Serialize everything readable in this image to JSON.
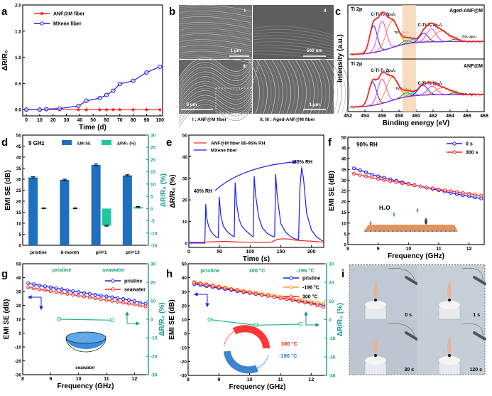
{
  "panel_letters": {
    "a": "a",
    "b": "b",
    "c": "c",
    "d": "d",
    "e": "e",
    "f": "f",
    "g": "g",
    "h": "h",
    "i": "i"
  },
  "colors": {
    "blue": "#1a1aff",
    "red": "#ff2020",
    "orange": "#ff9a1a",
    "teal": "#1a9a8a",
    "bar_blue": "#1f6fbf",
    "bar_green": "#20c8a0",
    "band": "#f6d3b0"
  },
  "panel_b": {
    "roman": [
      "I",
      "II",
      "III"
    ],
    "scale_bars": [
      "1 µm",
      "500 nm",
      "5 µm",
      "1 µm"
    ],
    "caption_left": "I : ANF@M fiber",
    "caption_right": "II, III : Aged-ANF@M fiber"
  },
  "panel_c_labels": {
    "top_title": "Ti 2p",
    "top_sample": "Aged-ANF@M",
    "bottom_title": "Ti 2p",
    "bottom_sample": "ANF@M",
    "c_ti_32": "C-Ti-Tₓ 2p₃/₂",
    "tio2_32": "TiO₂ 2p₃/₂",
    "c_ti_12": "C-Ti-Tₓ 2p₁/₂",
    "tio2_12": "TiO₂ 2p₁/₂"
  },
  "panel_d_labels": {
    "freq": "9 GHz",
    "legend_emi": "EMI SE",
    "legend_dr": "ΔR/R₀ (%)"
  },
  "panel_e_labels": {
    "rh_low": "40% RH",
    "rh_high": "85% RH"
  },
  "panel_f_labels": {
    "condition": "90% RH",
    "h2o": "H₂O"
  },
  "panel_g_labels": {
    "pristine": "pristine",
    "seawater": "seawater",
    "inset": "seawater"
  },
  "panel_h_labels": {
    "pristine": "pristine",
    "hot": "300 °C",
    "cold": "-196 °C",
    "ring_hot": "300 °C",
    "ring_cold": "-196 °C"
  },
  "panel_i": {
    "times": [
      "0 s",
      "1 s",
      "30 s",
      "120 s"
    ]
  },
  "chart_data": [
    {
      "panel": "a",
      "type": "line",
      "xlabel": "Time (d)",
      "ylabel": "ΔR/R₀",
      "xlim": [
        -2.7,
        102
      ],
      "ylim": [
        -0.12,
        2.0
      ],
      "xticks": [
        0,
        10,
        20,
        30,
        40,
        50,
        60,
        70,
        80,
        90,
        100
      ],
      "yticks": [
        0.0,
        0.5,
        1.0,
        1.5,
        2.0
      ],
      "ytick_labels": [
        "0.0",
        "0.5",
        "1.0",
        "1.5",
        "2.0"
      ],
      "legend": "top-left",
      "series": [
        {
          "name": "ANF@M fiber",
          "color": "#ff2020",
          "marker": "star",
          "x": [
            0,
            10,
            15,
            25,
            39,
            45,
            55,
            60,
            65,
            70,
            80,
            90,
            100
          ],
          "y": [
            0,
            0,
            0,
            0,
            0,
            0,
            0,
            0,
            0,
            0,
            0,
            0,
            0
          ]
        },
        {
          "name": "MXene fiber",
          "color": "#1a1aff",
          "marker": "circle",
          "x": [
            0,
            10,
            15,
            25,
            39,
            45,
            55,
            60,
            65,
            70,
            80,
            90,
            100
          ],
          "y": [
            0,
            0,
            0.01,
            0.02,
            0.07,
            0.17,
            0.22,
            0.28,
            0.36,
            0.49,
            0.55,
            0.71,
            0.82
          ]
        }
      ]
    },
    {
      "panel": "c",
      "type": "line",
      "xlabel": "Binding energy (eV)",
      "ylabel": "Intensity (a.u.)",
      "xlim": [
        452,
        468
      ],
      "xticks": [
        452,
        454,
        456,
        458,
        460,
        462,
        464,
        466,
        468
      ],
      "highlight_band": [
        458.4,
        460.0
      ],
      "component_colors": [
        "#1a1aff",
        "#ff30ff",
        "#ff8c1a",
        "#1a9a1a",
        "#20d0d0",
        "#1a1aff",
        "#ff30ff",
        "#ff8c1a",
        "#1a9a1a"
      ],
      "envelope_color": "#ff1a1a",
      "background_color": "#8a2be2",
      "spectra": [
        {
          "sample": "Aged-ANF@M",
          "peaks": [
            [
              455.0,
              0.45,
              0.45
            ],
            [
              456.0,
              0.5,
              0.5
            ],
            [
              457.2,
              0.45,
              0.7
            ],
            [
              458.8,
              0.06,
              0.45
            ],
            [
              459.5,
              0.06,
              0.45
            ],
            [
              460.9,
              0.15,
              0.5
            ],
            [
              461.8,
              0.22,
              0.55
            ],
            [
              463.0,
              0.18,
              0.8
            ],
            [
              464.6,
              0.04,
              0.5
            ]
          ]
        },
        {
          "sample": "ANF@M",
          "peaks": [
            [
              454.9,
              0.4,
              0.45
            ],
            [
              456.0,
              0.42,
              0.5
            ],
            [
              457.2,
              0.4,
              0.7
            ],
            [
              458.8,
              0.07,
              0.45
            ],
            [
              459.5,
              0.05,
              0.45
            ],
            [
              460.8,
              0.17,
              0.55
            ],
            [
              461.9,
              0.15,
              0.55
            ],
            [
              463.1,
              0.12,
              0.8
            ],
            [
              464.6,
              0.03,
              0.5
            ]
          ]
        }
      ]
    },
    {
      "panel": "d",
      "type": "bar",
      "ylabel": "EMI SE (dB)",
      "ylabel2": "ΔR/R₀ (%)",
      "categories": [
        "pristine",
        "8-month",
        "pH=1",
        "pH=13"
      ],
      "ylim": [
        0,
        50
      ],
      "yticks": [
        0,
        5,
        10,
        15,
        20,
        25,
        30,
        35,
        40,
        45,
        50
      ],
      "ylim2": [
        -15,
        30
      ],
      "yticks2": [
        -15,
        -10,
        -5,
        0,
        5,
        10,
        15,
        20,
        25,
        30
      ],
      "series": [
        {
          "name": "EMI SE",
          "axis": "left",
          "values": [
            30.8,
            29.7,
            36.5,
            31.7
          ],
          "errors": [
            0.3,
            0.3,
            0.4,
            0.3
          ]
        },
        {
          "name": "ΔR/R₀ (%)",
          "axis": "right",
          "values": [
            0.1,
            0.1,
            -7.0,
            0.6
          ],
          "errors": [
            0.2,
            0.2,
            0.2,
            0.2
          ]
        }
      ],
      "legend": "top"
    },
    {
      "panel": "e",
      "type": "line",
      "xlabel": "Time (s)",
      "ylabel": "ΔR/R₀ (%)",
      "xlim": [
        0,
        220
      ],
      "ylim": [
        -2,
        50
      ],
      "xticks": [
        0,
        50,
        100,
        150,
        200
      ],
      "yticks": [
        0,
        10,
        20,
        30,
        40,
        50
      ],
      "legend": "top-left",
      "series": [
        {
          "name": "ANF@M fiber 85-95% RH",
          "color": "#ff2020",
          "x": [
            0,
            20,
            40,
            60,
            80,
            100,
            120,
            135,
            145,
            155,
            165,
            175,
            190,
            205,
            220
          ],
          "y": [
            0.3,
            0.4,
            0.6,
            0.8,
            0.5,
            0.4,
            0.3,
            0.5,
            1.8,
            2.0,
            1.8,
            1.3,
            1.0,
            0.8,
            0.4
          ]
        },
        {
          "name": "MXene fiber",
          "color": "#1a1aff",
          "x": [
            0,
            26,
            27.5,
            29,
            32,
            36,
            40,
            44,
            47,
            48,
            49.5,
            52,
            56,
            62,
            68,
            73,
            74,
            75.5,
            78,
            82,
            86,
            92,
            98,
            104,
            105,
            106.5,
            109,
            114,
            120,
            128,
            134,
            138,
            140,
            141.5,
            144,
            150,
            158,
            166,
            172,
            178,
            179,
            181,
            184,
            187,
            192,
            200,
            208,
            215,
            220
          ],
          "y": [
            0,
            0,
            18,
            12,
            8,
            5.5,
            4,
            3,
            2.5,
            2.5,
            21.5,
            13,
            8,
            5.5,
            4,
            3,
            3,
            28,
            18,
            11,
            8,
            6,
            4.5,
            3,
            3,
            31,
            22,
            12,
            7,
            4.5,
            3.5,
            3,
            3,
            32,
            22,
            9,
            5,
            3,
            2,
            1.8,
            1.8,
            25,
            35,
            30,
            14,
            6,
            3,
            1.5,
            0.8
          ]
        }
      ]
    },
    {
      "panel": "f",
      "type": "line",
      "xlabel": "Frequency (GHz)",
      "ylabel": "EMI SE (dB)",
      "xlim": [
        8,
        12.5
      ],
      "ylim": [
        0,
        50
      ],
      "xticks": [
        8,
        9,
        10,
        11,
        12
      ],
      "yticks": [
        0,
        5,
        10,
        15,
        20,
        25,
        30,
        35,
        40,
        45,
        50
      ],
      "legend": "top-right",
      "series": [
        {
          "name": "0 s",
          "color": "#1a1aff",
          "marker": "circle",
          "x": [
            8.2,
            8.4,
            8.6,
            8.8,
            9.0,
            9.2,
            9.4,
            9.6,
            9.8,
            10.0,
            10.2,
            10.4,
            10.6,
            10.8,
            11.0,
            11.2,
            11.4,
            11.6,
            11.8,
            12.0,
            12.2,
            12.4
          ],
          "y": [
            35.5,
            34.6,
            33.7,
            32.6,
            31.8,
            31.1,
            30.4,
            29.7,
            29.0,
            28.3,
            27.7,
            27.1,
            26.5,
            25.9,
            25.3,
            24.7,
            24.1,
            23.5,
            23.0,
            22.5,
            22.0,
            21.5
          ]
        },
        {
          "name": "300 s",
          "color": "#ff2020",
          "marker": "circle",
          "x": [
            8.2,
            8.4,
            8.6,
            8.8,
            9.0,
            9.2,
            9.4,
            9.6,
            9.8,
            10.0,
            10.2,
            10.4,
            10.6,
            10.8,
            11.0,
            11.2,
            11.4,
            11.6,
            11.8,
            12.0,
            12.2,
            12.4
          ],
          "y": [
            33.0,
            32.4,
            31.8,
            31.2,
            30.6,
            30.1,
            29.6,
            29.1,
            28.6,
            28.1,
            27.6,
            27.1,
            26.6,
            26.2,
            25.7,
            25.3,
            24.9,
            24.5,
            24.1,
            23.7,
            23.3,
            22.8
          ]
        }
      ]
    },
    {
      "panel": "g",
      "type": "line",
      "xlabel": "Frequency (GHz)",
      "ylabel": "EMI SE (dB)",
      "ylabel2": "ΔR/R₀ (%)",
      "xlim": [
        8,
        12.5
      ],
      "ylim": [
        -30,
        50
      ],
      "ylim2": [
        -30,
        30
      ],
      "xticks": [
        8,
        9,
        10,
        11,
        12
      ],
      "yticks": [
        -30,
        -20,
        -10,
        0,
        10,
        20,
        30,
        40,
        50
      ],
      "yticks2": [
        -30,
        -20,
        -10,
        0,
        10,
        20,
        30
      ],
      "legend": "top-right",
      "series": [
        {
          "name": "pristine",
          "color": "#1a1aff",
          "marker": "circle",
          "x": [
            8.2,
            8.4,
            8.6,
            8.8,
            9.0,
            9.2,
            9.4,
            9.6,
            9.8,
            10.0,
            10.2,
            10.4,
            10.6,
            10.8,
            11.0,
            11.2,
            11.4,
            11.6,
            11.8,
            12.0,
            12.2,
            12.4
          ],
          "y": [
            36,
            35.2,
            34.4,
            33.7,
            33.0,
            32.3,
            31.6,
            30.9,
            30.2,
            29.6,
            29.0,
            28.3,
            27.7,
            27.1,
            26.5,
            25.9,
            25.2,
            24.6,
            23.9,
            23.0,
            22.1,
            21.2
          ]
        },
        {
          "name": "seawater",
          "color": "#ff2020",
          "marker": "circle",
          "x": [
            8.2,
            8.4,
            8.6,
            8.8,
            9.0,
            9.2,
            9.4,
            9.6,
            9.8,
            10.0,
            10.2,
            10.4,
            10.6,
            10.8,
            11.0,
            11.2,
            11.4,
            11.6,
            11.8,
            12.0,
            12.2,
            12.4
          ],
          "y": [
            33,
            32.3,
            31.6,
            31.0,
            30.3,
            29.6,
            29.0,
            28.3,
            27.7,
            27.0,
            26.4,
            25.8,
            25.1,
            24.5,
            23.9,
            23.2,
            22.6,
            22.0,
            21.3,
            20.6,
            19.9,
            19.2
          ]
        },
        {
          "axis": "right",
          "color": "#20b896",
          "marker": "circle",
          "x": [
            9.3,
            11.2
          ],
          "y": [
            0,
            -0.5
          ]
        }
      ]
    },
    {
      "panel": "h",
      "type": "line",
      "xlabel": "Frequency (GHz)",
      "ylabel": "EMI SE (dB)",
      "ylabel2": "ΔR/R₀ (%)",
      "xlim": [
        8,
        12.5
      ],
      "ylim": [
        -30,
        50
      ],
      "ylim2": [
        -30,
        30
      ],
      "xticks": [
        8,
        9,
        10,
        11,
        12
      ],
      "yticks": [
        -30,
        -20,
        -10,
        0,
        10,
        20,
        30,
        40,
        50
      ],
      "yticks2": [
        -30,
        -20,
        -10,
        0,
        10,
        20,
        30
      ],
      "legend": "top-right",
      "series": [
        {
          "name": "pristine",
          "color": "#1a1aff",
          "marker": "circle",
          "x": [
            8.2,
            8.4,
            8.6,
            8.8,
            9.0,
            9.2,
            9.4,
            9.6,
            9.8,
            10.0,
            10.2,
            10.4,
            10.6,
            10.8,
            11.0,
            11.2,
            11.4,
            11.6,
            11.8,
            12.0,
            12.2,
            12.4
          ],
          "y": [
            35.5,
            34.7,
            33.9,
            33.2,
            32.5,
            31.8,
            31.1,
            30.4,
            29.7,
            29.0,
            28.3,
            27.6,
            27.0,
            26.3,
            25.6,
            24.9,
            24.2,
            23.5,
            22.8,
            22.1,
            21.3,
            20.5
          ]
        },
        {
          "name": "-196 °C",
          "color": "#ff9a1a",
          "marker": "circle",
          "x": [
            8.2,
            8.4,
            8.6,
            8.8,
            9.0,
            9.2,
            9.4,
            9.6,
            9.8,
            10.0,
            10.2,
            10.4,
            10.6,
            10.8,
            11.0,
            11.2,
            11.4,
            11.6,
            11.8,
            12.0,
            12.2,
            12.4
          ],
          "y": [
            37.0,
            36.2,
            35.4,
            34.6,
            33.8,
            33.0,
            32.2,
            31.5,
            30.8,
            30.1,
            29.4,
            28.7,
            28.0,
            27.3,
            26.6,
            25.9,
            25.2,
            24.5,
            23.7,
            23.0,
            22.2,
            21.5
          ]
        },
        {
          "name": "300 °C",
          "color": "#ff2020",
          "marker": "circle",
          "x": [
            8.2,
            8.4,
            8.6,
            8.8,
            9.0,
            9.2,
            9.4,
            9.6,
            9.8,
            10.0,
            10.2,
            10.4,
            10.6,
            10.8,
            11.0,
            11.2,
            11.4,
            11.6,
            11.8,
            12.0,
            12.2,
            12.4
          ],
          "y": [
            36.5,
            35.7,
            34.9,
            34.1,
            33.3,
            32.5,
            31.7,
            30.9,
            30.1,
            29.3,
            28.5,
            27.8,
            27.0,
            26.2,
            25.4,
            24.6,
            23.8,
            23.0,
            22.2,
            21.4,
            20.2,
            19.0
          ]
        },
        {
          "axis": "right",
          "color": "#20b896",
          "marker": "circle",
          "x": [
            8.7,
            10.2,
            11.65
          ],
          "y": [
            0,
            -3,
            -2.5
          ]
        }
      ]
    }
  ]
}
